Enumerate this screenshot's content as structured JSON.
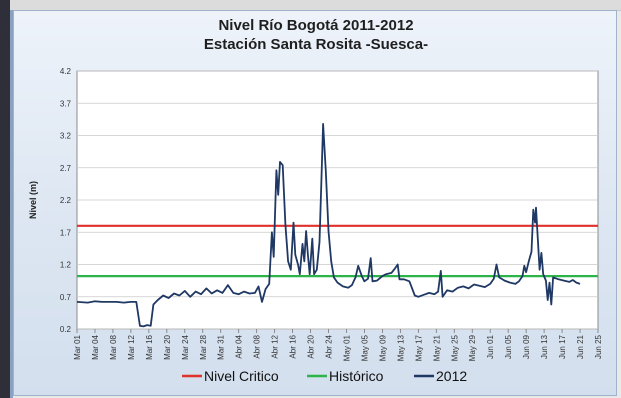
{
  "chart_data": {
    "type": "line",
    "title": "Nivel Río Bogotá 2011-2012",
    "subtitle": "Estación Santa Rosita -Suesca-",
    "ylabel": "Nivel (m)",
    "xlabel": "",
    "ylim": [
      0.2,
      4.2
    ],
    "yticks": [
      "0.2",
      "0.7",
      "1.2",
      "1.7",
      "2.2",
      "2.7",
      "3.2",
      "3.7",
      "4.2"
    ],
    "categories": [
      "Mar 01",
      "Mar 04",
      "Mar 08",
      "Mar 12",
      "Mar 16",
      "Mar 20",
      "Mar 24",
      "Mar 28",
      "Mar 31",
      "Abr 04",
      "Abr 08",
      "Abr 12",
      "Abr 16",
      "Abr 20",
      "Abr 24",
      "May 01",
      "May 05",
      "May 09",
      "May 13",
      "May 17",
      "May 21",
      "May 25",
      "May 29",
      "Jun 01",
      "Jun 05",
      "Jun 09",
      "Jun 13",
      "Jun 17",
      "Jun 21",
      "Jun 25"
    ],
    "grid": true,
    "legend_position": "bottom",
    "series": [
      {
        "name": "Nivel Critico",
        "color": "#e0312b",
        "type": "hline",
        "value": 1.8
      },
      {
        "name": "Histórico",
        "color": "#2cb34a",
        "type": "hline",
        "value": 1.02
      },
      {
        "name": "2012",
        "color": "#1f3864",
        "type": "line",
        "points": [
          [
            0,
            0.62
          ],
          [
            0.6,
            0.61
          ],
          [
            1,
            0.63
          ],
          [
            1.4,
            0.62
          ],
          [
            1.8,
            0.62
          ],
          [
            2.2,
            0.62
          ],
          [
            2.6,
            0.61
          ],
          [
            3,
            0.62
          ],
          [
            3.3,
            0.62
          ],
          [
            3.5,
            0.25
          ],
          [
            3.7,
            0.24
          ],
          [
            3.9,
            0.26
          ],
          [
            4.1,
            0.25
          ],
          [
            4.25,
            0.58
          ],
          [
            4.5,
            0.65
          ],
          [
            4.8,
            0.72
          ],
          [
            5.1,
            0.68
          ],
          [
            5.4,
            0.75
          ],
          [
            5.7,
            0.72
          ],
          [
            6.0,
            0.79
          ],
          [
            6.3,
            0.7
          ],
          [
            6.6,
            0.78
          ],
          [
            6.9,
            0.74
          ],
          [
            7.2,
            0.83
          ],
          [
            7.5,
            0.75
          ],
          [
            7.8,
            0.8
          ],
          [
            8.1,
            0.76
          ],
          [
            8.4,
            0.88
          ],
          [
            8.7,
            0.76
          ],
          [
            9.0,
            0.74
          ],
          [
            9.3,
            0.78
          ],
          [
            9.6,
            0.75
          ],
          [
            9.9,
            0.76
          ],
          [
            10.1,
            0.86
          ],
          [
            10.3,
            0.62
          ],
          [
            10.5,
            0.82
          ],
          [
            10.7,
            0.9
          ],
          [
            10.85,
            1.7
          ],
          [
            10.95,
            1.32
          ],
          [
            11.1,
            2.66
          ],
          [
            11.2,
            2.28
          ],
          [
            11.3,
            2.79
          ],
          [
            11.45,
            2.74
          ],
          [
            11.6,
            1.82
          ],
          [
            11.75,
            1.25
          ],
          [
            11.9,
            1.12
          ],
          [
            12.05,
            1.85
          ],
          [
            12.15,
            1.35
          ],
          [
            12.3,
            1.2
          ],
          [
            12.4,
            1.05
          ],
          [
            12.55,
            1.52
          ],
          [
            12.65,
            1.25
          ],
          [
            12.75,
            1.72
          ],
          [
            12.85,
            1.35
          ],
          [
            12.95,
            1.05
          ],
          [
            13.1,
            1.6
          ],
          [
            13.2,
            1.05
          ],
          [
            13.35,
            1.12
          ],
          [
            13.5,
            1.55
          ],
          [
            13.6,
            2.45
          ],
          [
            13.7,
            3.38
          ],
          [
            13.85,
            2.65
          ],
          [
            14.0,
            1.72
          ],
          [
            14.15,
            1.25
          ],
          [
            14.3,
            1.0
          ],
          [
            14.5,
            0.92
          ],
          [
            14.8,
            0.86
          ],
          [
            15.1,
            0.84
          ],
          [
            15.3,
            0.88
          ],
          [
            15.5,
            1.0
          ],
          [
            15.65,
            1.18
          ],
          [
            15.85,
            1.02
          ],
          [
            16.0,
            0.94
          ],
          [
            16.2,
            0.98
          ],
          [
            16.35,
            1.3
          ],
          [
            16.45,
            0.94
          ],
          [
            16.7,
            0.95
          ],
          [
            17.0,
            1.02
          ],
          [
            17.2,
            1.05
          ],
          [
            17.5,
            1.07
          ],
          [
            17.7,
            1.14
          ],
          [
            17.85,
            1.2
          ],
          [
            17.95,
            0.97
          ],
          [
            18.2,
            0.97
          ],
          [
            18.5,
            0.94
          ],
          [
            18.8,
            0.72
          ],
          [
            19.0,
            0.7
          ],
          [
            19.3,
            0.73
          ],
          [
            19.6,
            0.76
          ],
          [
            19.9,
            0.74
          ],
          [
            20.1,
            0.78
          ],
          [
            20.25,
            1.1
          ],
          [
            20.35,
            0.7
          ],
          [
            20.6,
            0.8
          ],
          [
            20.9,
            0.78
          ],
          [
            21.2,
            0.84
          ],
          [
            21.5,
            0.86
          ],
          [
            21.8,
            0.83
          ],
          [
            22.1,
            0.89
          ],
          [
            22.4,
            0.87
          ],
          [
            22.7,
            0.85
          ],
          [
            23.0,
            0.9
          ],
          [
            23.2,
            0.98
          ],
          [
            23.35,
            1.2
          ],
          [
            23.5,
            1.0
          ],
          [
            23.8,
            0.95
          ],
          [
            24.1,
            0.92
          ],
          [
            24.4,
            0.9
          ],
          [
            24.6,
            0.94
          ],
          [
            24.8,
            1.02
          ],
          [
            24.9,
            1.18
          ],
          [
            25.0,
            1.08
          ],
          [
            25.15,
            1.25
          ],
          [
            25.3,
            1.4
          ],
          [
            25.4,
            2.05
          ],
          [
            25.5,
            1.85
          ],
          [
            25.55,
            2.08
          ],
          [
            25.65,
            1.6
          ],
          [
            25.75,
            1.12
          ],
          [
            25.85,
            1.38
          ],
          [
            25.95,
            1.05
          ],
          [
            26.1,
            0.95
          ],
          [
            26.2,
            0.65
          ],
          [
            26.3,
            0.92
          ],
          [
            26.4,
            0.58
          ],
          [
            26.5,
            1.0
          ],
          [
            26.8,
            0.97
          ],
          [
            27.1,
            0.95
          ],
          [
            27.4,
            0.93
          ],
          [
            27.6,
            0.96
          ],
          [
            27.8,
            0.92
          ],
          [
            28.0,
            0.9
          ]
        ]
      }
    ]
  }
}
